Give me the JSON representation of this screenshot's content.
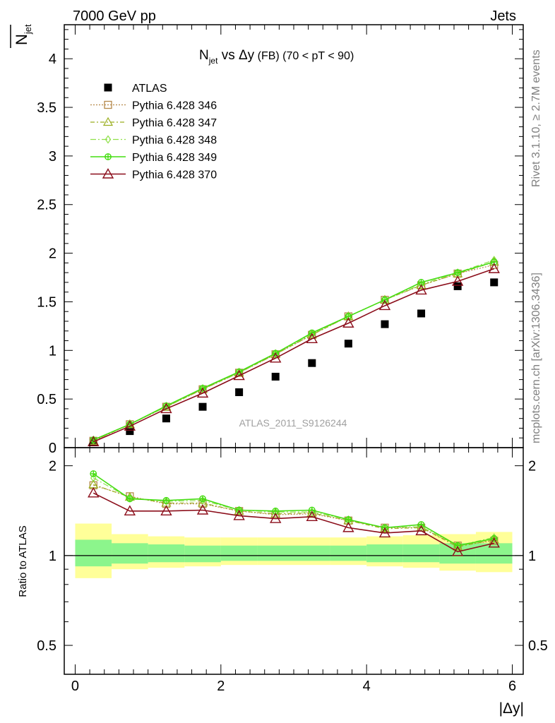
{
  "header": {
    "energy": "7000 GeV pp",
    "process": "Jets",
    "ylabel": "N",
    "ylabel_sub": "jet",
    "title_main": "N",
    "title_sub": "jet",
    "title_rest": " vs Δy",
    "title_fb": " (FB)",
    "title_cut": "  (70 < pT <  90)",
    "watermark": "ATLAS_2011_S9126244",
    "side_rivet": "Rivet 3.1.10, ≥ 2.7M events",
    "side_mcplots": "mcplots.cern.ch [arXiv:1306.3436]",
    "ratio_ylabel": "Ratio to ATLAS",
    "xlabel": "|Δy|"
  },
  "colors": {
    "data": "#000000",
    "p346": "#b5894a",
    "p347": "#9aae1e",
    "p348": "#8fe04a",
    "p349": "#44dd11",
    "p370": "#8b0d1a",
    "band_inner": "#8cf58c",
    "band_outer": "#ffff99"
  },
  "chart_data": [
    {
      "type": "scatter",
      "name": "main",
      "x": [
        0.25,
        0.75,
        1.25,
        1.75,
        2.25,
        2.75,
        3.25,
        3.75,
        4.25,
        4.75,
        5.25,
        5.75
      ],
      "xlim": [
        -0.15,
        6.15
      ],
      "ylim": [
        0,
        4.35
      ],
      "yticks": [
        "0",
        "0.5",
        "1",
        "1.5",
        "2",
        "2.5",
        "3",
        "3.5",
        "4"
      ],
      "series": [
        {
          "name": "ATLAS",
          "key": "data",
          "values": [
            0.06,
            0.17,
            0.3,
            0.42,
            0.57,
            0.73,
            0.87,
            1.07,
            1.27,
            1.38,
            1.66,
            1.7
          ]
        },
        {
          "name": "Pythia 6.428 346",
          "key": "p346",
          "values": [
            0.07,
            0.24,
            0.42,
            0.6,
            0.77,
            0.96,
            1.16,
            1.35,
            1.52,
            1.67,
            1.79,
            1.88
          ]
        },
        {
          "name": "Pythia 6.428 347",
          "key": "p347",
          "values": [
            0.07,
            0.24,
            0.42,
            0.6,
            0.77,
            0.96,
            1.16,
            1.35,
            1.52,
            1.67,
            1.79,
            1.91
          ]
        },
        {
          "name": "Pythia 6.428 348",
          "key": "p348",
          "values": [
            0.08,
            0.24,
            0.42,
            0.61,
            0.77,
            0.97,
            1.17,
            1.35,
            1.52,
            1.68,
            1.8,
            1.93
          ]
        },
        {
          "name": "Pythia 6.428 349",
          "key": "p349",
          "values": [
            0.08,
            0.24,
            0.43,
            0.61,
            0.78,
            0.97,
            1.18,
            1.35,
            1.52,
            1.7,
            1.8,
            1.91
          ]
        },
        {
          "name": "Pythia 6.428 370",
          "key": "p370",
          "values": [
            0.06,
            0.22,
            0.4,
            0.56,
            0.74,
            0.92,
            1.12,
            1.28,
            1.46,
            1.62,
            1.71,
            1.84
          ]
        }
      ]
    },
    {
      "type": "line",
      "name": "ratio",
      "x": [
        0.25,
        0.75,
        1.25,
        1.75,
        2.25,
        2.75,
        3.25,
        3.75,
        4.25,
        4.75,
        5.25,
        5.75
      ],
      "xlim": [
        -0.15,
        6.15
      ],
      "ylim": [
        0.4,
        2.3
      ],
      "yticks": [
        "0.5",
        "1",
        "2"
      ],
      "xticks": [
        "0",
        "2",
        "4",
        "6"
      ],
      "bin_edges": [
        0,
        0.5,
        1,
        1.5,
        2,
        2.5,
        3,
        3.5,
        4,
        4.5,
        5,
        5.5,
        6
      ],
      "band_inner": [
        [
          0.92,
          1.13
        ],
        [
          0.94,
          1.1
        ],
        [
          0.95,
          1.09
        ],
        [
          0.95,
          1.08
        ],
        [
          0.96,
          1.08
        ],
        [
          0.96,
          1.08
        ],
        [
          0.96,
          1.08
        ],
        [
          0.96,
          1.08
        ],
        [
          0.95,
          1.09
        ],
        [
          0.95,
          1.09
        ],
        [
          0.94,
          1.1
        ],
        [
          0.94,
          1.1
        ]
      ],
      "band_outer": [
        [
          0.84,
          1.28
        ],
        [
          0.9,
          1.18
        ],
        [
          0.91,
          1.16
        ],
        [
          0.92,
          1.15
        ],
        [
          0.93,
          1.15
        ],
        [
          0.93,
          1.15
        ],
        [
          0.93,
          1.15
        ],
        [
          0.93,
          1.15
        ],
        [
          0.92,
          1.16
        ],
        [
          0.91,
          1.17
        ],
        [
          0.89,
          1.18
        ],
        [
          0.88,
          1.2
        ]
      ],
      "series": [
        {
          "name": "Pythia 6.428 346",
          "key": "p346",
          "values": [
            1.72,
            1.58,
            1.49,
            1.49,
            1.41,
            1.37,
            1.38,
            1.31,
            1.24,
            1.24,
            1.08,
            1.12
          ]
        },
        {
          "name": "Pythia 6.428 347",
          "key": "p347",
          "values": [
            1.73,
            1.57,
            1.5,
            1.5,
            1.41,
            1.38,
            1.39,
            1.31,
            1.23,
            1.24,
            1.07,
            1.13
          ]
        },
        {
          "name": "Pythia 6.428 348",
          "key": "p348",
          "values": [
            1.82,
            1.56,
            1.52,
            1.53,
            1.42,
            1.4,
            1.4,
            1.32,
            1.24,
            1.25,
            1.08,
            1.15
          ]
        },
        {
          "name": "Pythia 6.428 349",
          "key": "p349",
          "values": [
            1.88,
            1.55,
            1.53,
            1.55,
            1.42,
            1.41,
            1.42,
            1.32,
            1.24,
            1.27,
            1.08,
            1.14
          ]
        },
        {
          "name": "Pythia 6.428 370",
          "key": "p370",
          "values": [
            1.62,
            1.41,
            1.41,
            1.42,
            1.36,
            1.33,
            1.35,
            1.24,
            1.19,
            1.21,
            1.03,
            1.1
          ]
        }
      ]
    }
  ]
}
